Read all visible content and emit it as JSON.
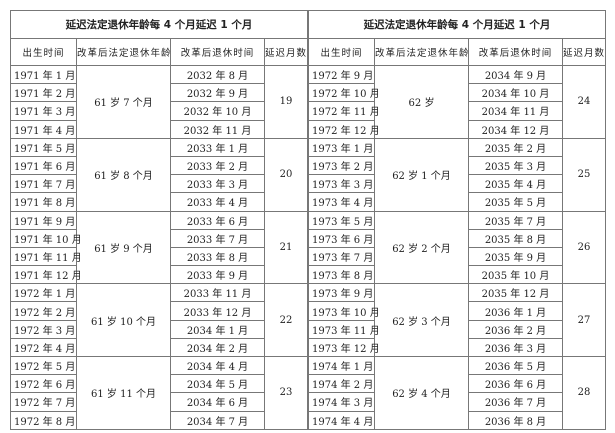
{
  "tables": [
    {
      "title": "延迟法定退休年龄每 4 个月延迟 1 个月",
      "headers": [
        "出生时间",
        "改革后法定退休年龄",
        "改革后退休时间",
        "延迟月数"
      ],
      "groups": [
        {
          "age": "61 岁 7 个月",
          "delay": "19",
          "rows": [
            [
              "1971 年 1 月",
              "2032 年 8 月"
            ],
            [
              "1971 年 2 月",
              "2032 年 9 月"
            ],
            [
              "1971 年 3 月",
              "2032 年 10 月"
            ],
            [
              "1971 年 4 月",
              "2032 年 11 月"
            ]
          ]
        },
        {
          "age": "61 岁 8 个月",
          "delay": "20",
          "rows": [
            [
              "1971 年 5 月",
              "2033 年 1 月"
            ],
            [
              "1971 年 6 月",
              "2033 年 2 月"
            ],
            [
              "1971 年 7 月",
              "2033 年 3 月"
            ],
            [
              "1971 年 8 月",
              "2033 年 4 月"
            ]
          ]
        },
        {
          "age": "61 岁 9 个月",
          "delay": "21",
          "rows": [
            [
              "1971 年 9 月",
              "2033 年 6 月"
            ],
            [
              "1971 年 10 月",
              "2033 年 7 月"
            ],
            [
              "1971 年 11 月",
              "2033 年 8 月"
            ],
            [
              "1971 年 12 月",
              "2033 年 9 月"
            ]
          ]
        },
        {
          "age": "61 岁 10 个月",
          "delay": "22",
          "rows": [
            [
              "1972 年 1 月",
              "2033 年 11 月"
            ],
            [
              "1972 年 2 月",
              "2033 年 12 月"
            ],
            [
              "1972 年 3 月",
              "2034 年 1 月"
            ],
            [
              "1972 年 4 月",
              "2034 年 2 月"
            ]
          ]
        },
        {
          "age": "61 岁 11 个月",
          "delay": "23",
          "rows": [
            [
              "1972 年 5 月",
              "2034 年 4 月"
            ],
            [
              "1972 年 6 月",
              "2034 年 5 月"
            ],
            [
              "1972 年 7 月",
              "2034 年 6 月"
            ],
            [
              "1972 年 8 月",
              "2034 年 7 月"
            ]
          ]
        }
      ]
    },
    {
      "title": "延迟法定退休年龄每 4 个月延迟 1 个月",
      "headers": [
        "出生时间",
        "改革后法定退休年龄",
        "改革后退休时间",
        "延迟月数"
      ],
      "groups": [
        {
          "age": "62 岁",
          "delay": "24",
          "rows": [
            [
              "1972 年 9 月",
              "2034 年 9 月"
            ],
            [
              "1972 年 10 月",
              "2034 年 10 月"
            ],
            [
              "1972 年 11 月",
              "2034 年 11 月"
            ],
            [
              "1972 年 12 月",
              "2034 年 12 月"
            ]
          ]
        },
        {
          "age": "62 岁 1 个月",
          "delay": "25",
          "rows": [
            [
              "1973 年 1 月",
              "2035 年 2 月"
            ],
            [
              "1973 年 2 月",
              "2035 年 3 月"
            ],
            [
              "1973 年 3 月",
              "2035 年 4 月"
            ],
            [
              "1973 年 4 月",
              "2035 年 5 月"
            ]
          ]
        },
        {
          "age": "62 岁 2 个月",
          "delay": "26",
          "rows": [
            [
              "1973 年 5 月",
              "2035 年 7 月"
            ],
            [
              "1973 年 6 月",
              "2035 年 8 月"
            ],
            [
              "1973 年 7 月",
              "2035 年 9 月"
            ],
            [
              "1973 年 8 月",
              "2035 年 10 月"
            ]
          ]
        },
        {
          "age": "62 岁 3 个月",
          "delay": "27",
          "rows": [
            [
              "1973 年 9 月",
              "2035 年 12 月"
            ],
            [
              "1973 年 10 月",
              "2036 年 1 月"
            ],
            [
              "1973 年 11 月",
              "2036 年 2 月"
            ],
            [
              "1973 年 12 月",
              "2036 年 3 月"
            ]
          ]
        },
        {
          "age": "62 岁 4 个月",
          "delay": "28",
          "rows": [
            [
              "1974 年 1 月",
              "2036 年 5 月"
            ],
            [
              "1974 年 2 月",
              "2036 年 6 月"
            ],
            [
              "1974 年 3 月",
              "2036 年 7 月"
            ],
            [
              "1974 年 4 月",
              "2036 年 8 月"
            ]
          ]
        }
      ]
    }
  ]
}
